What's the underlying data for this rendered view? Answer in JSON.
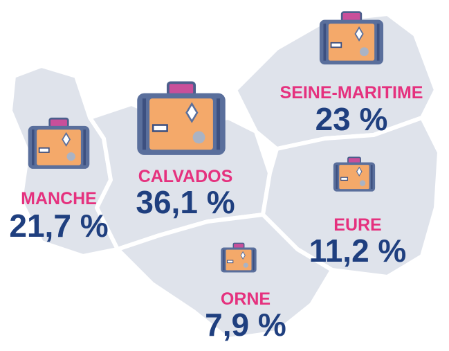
{
  "regions": [
    {
      "name": "MANCHE",
      "share": 21.7,
      "share_label": "21,7 %"
    },
    {
      "name": "CALVADOS",
      "share": 36.1,
      "share_label": "36,1 %"
    },
    {
      "name": "SEINE-MARITIME",
      "share": 23,
      "share_label": "23 %"
    },
    {
      "name": "EURE",
      "share": 11.2,
      "share_label": "11,2 %"
    },
    {
      "name": "ORNE",
      "share": 7.9,
      "share_label": "7,9 %"
    }
  ]
}
